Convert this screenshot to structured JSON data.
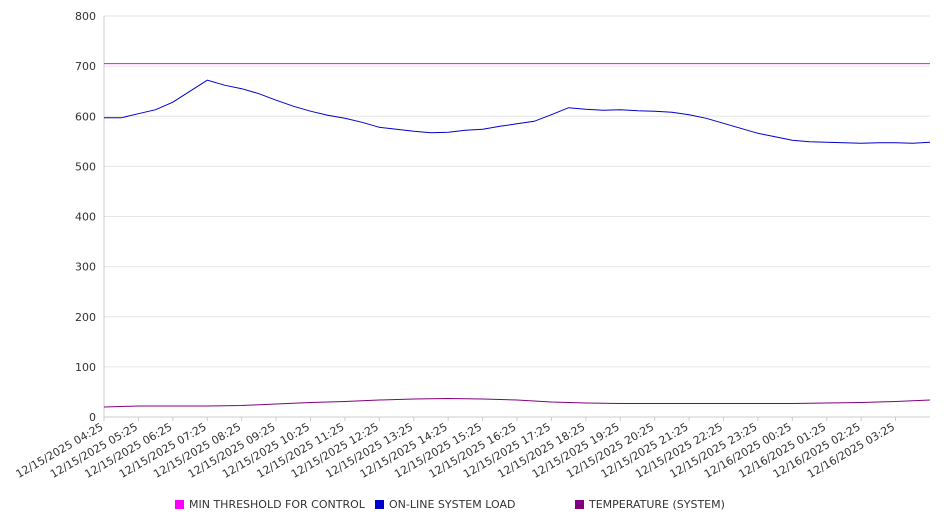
{
  "chart_data": {
    "type": "line",
    "ylim": [
      0,
      800
    ],
    "yticks": [
      0,
      100,
      200,
      300,
      400,
      500,
      600,
      700,
      800
    ],
    "x_tick_labels": [
      "12/15/2025 04:25",
      "12/15/2025 05:25",
      "12/15/2025 06:25",
      "12/15/2025 07:25",
      "12/15/2025 08:25",
      "12/15/2025 09:25",
      "12/15/2025 10:25",
      "12/15/2025 11:25",
      "12/15/2025 12:25",
      "12/15/2025 13:25",
      "12/15/2025 14:25",
      "12/15/2025 15:25",
      "12/15/2025 16:25",
      "12/15/2025 17:25",
      "12/15/2025 18:25",
      "12/15/2025 19:25",
      "12/15/2025 20:25",
      "12/15/2025 21:25",
      "12/15/2025 22:25",
      "12/15/2025 23:25",
      "12/16/2025 00:25",
      "12/16/2025 01:25",
      "12/16/2025 02:25",
      "12/16/2025 03:25"
    ],
    "x_range": [
      "12/15/2025 04:25",
      "12/16/2025 04:25"
    ],
    "grid": "horizontal",
    "legend_position": "bottom",
    "series": [
      {
        "name": "MIN THRESHOLD FOR CONTROL",
        "color": "#ff00ff",
        "points": [
          [
            "12/15/2025 04:25",
            705
          ],
          [
            "12/16/2025 04:25",
            705
          ]
        ]
      },
      {
        "name": "ON-LINE SYSTEM LOAD",
        "color": "#0000cc",
        "points": [
          [
            "12/15/2025 04:25",
            597
          ],
          [
            "12/15/2025 04:55",
            597
          ],
          [
            "12/15/2025 05:25",
            605
          ],
          [
            "12/15/2025 05:55",
            613
          ],
          [
            "12/15/2025 06:25",
            628
          ],
          [
            "12/15/2025 06:55",
            650
          ],
          [
            "12/15/2025 07:25",
            672
          ],
          [
            "12/15/2025 07:55",
            662
          ],
          [
            "12/15/2025 08:25",
            655
          ],
          [
            "12/15/2025 08:55",
            645
          ],
          [
            "12/15/2025 09:25",
            632
          ],
          [
            "12/15/2025 09:55",
            620
          ],
          [
            "12/15/2025 10:25",
            610
          ],
          [
            "12/15/2025 10:55",
            602
          ],
          [
            "12/15/2025 11:25",
            596
          ],
          [
            "12/15/2025 11:55",
            588
          ],
          [
            "12/15/2025 12:25",
            578
          ],
          [
            "12/15/2025 12:55",
            574
          ],
          [
            "12/15/2025 13:25",
            570
          ],
          [
            "12/15/2025 13:55",
            567
          ],
          [
            "12/15/2025 14:25",
            568
          ],
          [
            "12/15/2025 14:55",
            572
          ],
          [
            "12/15/2025 15:25",
            574
          ],
          [
            "12/15/2025 15:55",
            580
          ],
          [
            "12/15/2025 16:25",
            585
          ],
          [
            "12/15/2025 16:55",
            590
          ],
          [
            "12/15/2025 17:25",
            603
          ],
          [
            "12/15/2025 17:55",
            617
          ],
          [
            "12/15/2025 18:25",
            614
          ],
          [
            "12/15/2025 18:55",
            612
          ],
          [
            "12/15/2025 19:25",
            613
          ],
          [
            "12/15/2025 19:55",
            611
          ],
          [
            "12/15/2025 20:25",
            610
          ],
          [
            "12/15/2025 20:55",
            608
          ],
          [
            "12/15/2025 21:25",
            603
          ],
          [
            "12/15/2025 21:55",
            596
          ],
          [
            "12/15/2025 22:25",
            586
          ],
          [
            "12/15/2025 22:55",
            576
          ],
          [
            "12/15/2025 23:25",
            566
          ],
          [
            "12/15/2025 23:55",
            559
          ],
          [
            "12/16/2025 00:25",
            552
          ],
          [
            "12/16/2025 00:55",
            549
          ],
          [
            "12/16/2025 01:25",
            548
          ],
          [
            "12/16/2025 01:55",
            547
          ],
          [
            "12/16/2025 02:25",
            546
          ],
          [
            "12/16/2025 02:55",
            547
          ],
          [
            "12/16/2025 03:25",
            547
          ],
          [
            "12/16/2025 03:55",
            546
          ],
          [
            "12/16/2025 04:25",
            548
          ]
        ]
      },
      {
        "name": "TEMPERATURE (SYSTEM)",
        "color": "#800080",
        "points": [
          [
            "12/15/2025 04:25",
            20
          ],
          [
            "12/15/2025 05:25",
            22
          ],
          [
            "12/15/2025 06:25",
            22
          ],
          [
            "12/15/2025 07:25",
            22
          ],
          [
            "12/15/2025 08:25",
            23
          ],
          [
            "12/15/2025 09:25",
            26
          ],
          [
            "12/15/2025 10:25",
            29
          ],
          [
            "12/15/2025 11:25",
            31
          ],
          [
            "12/15/2025 12:25",
            34
          ],
          [
            "12/15/2025 13:25",
            36
          ],
          [
            "12/15/2025 14:25",
            37
          ],
          [
            "12/15/2025 15:25",
            36
          ],
          [
            "12/15/2025 16:25",
            34
          ],
          [
            "12/15/2025 17:25",
            30
          ],
          [
            "12/15/2025 18:25",
            28
          ],
          [
            "12/15/2025 19:25",
            27
          ],
          [
            "12/15/2025 20:25",
            27
          ],
          [
            "12/15/2025 21:25",
            27
          ],
          [
            "12/15/2025 22:25",
            27
          ],
          [
            "12/15/2025 23:25",
            27
          ],
          [
            "12/16/2025 00:25",
            27
          ],
          [
            "12/16/2025 01:25",
            28
          ],
          [
            "12/16/2025 02:25",
            29
          ],
          [
            "12/16/2025 03:25",
            31
          ],
          [
            "12/16/2025 04:25",
            34
          ]
        ]
      }
    ]
  }
}
